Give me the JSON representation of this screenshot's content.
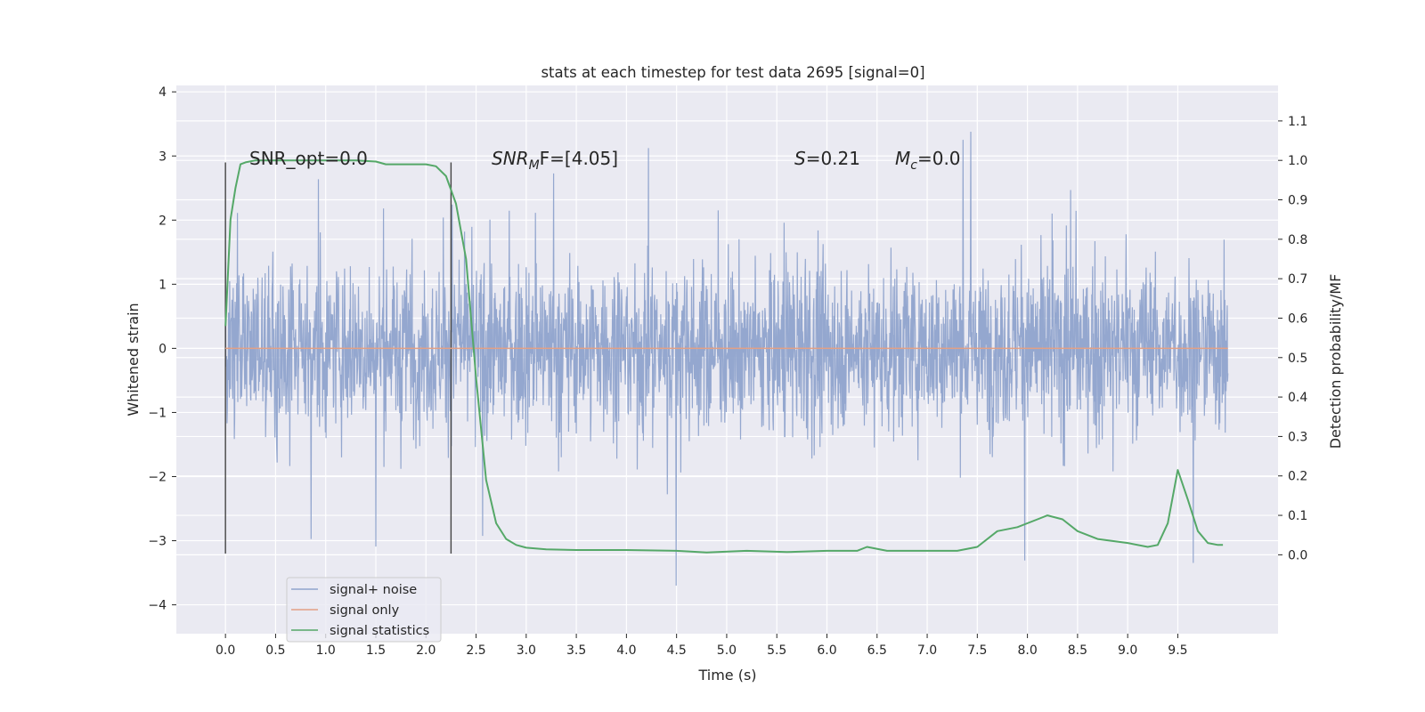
{
  "chart_data": {
    "type": "line",
    "title": "stats at each timestep for test data 2695 [signal=0]",
    "xlabel": "Time (s)",
    "ylabel_left": "Whitened strain",
    "ylabel_right": "Detection probability/MF",
    "xlim": [
      -0.49,
      10.5
    ],
    "ylim_left": [
      -4.45,
      4.1
    ],
    "ylim_right": [
      -0.2,
      1.19
    ],
    "x_ticks": [
      "0.0",
      "0.5",
      "1.0",
      "1.5",
      "2.0",
      "2.5",
      "3.0",
      "3.5",
      "4.0",
      "4.5",
      "5.0",
      "5.5",
      "6.0",
      "6.5",
      "7.0",
      "7.5",
      "8.0",
      "8.5",
      "9.0",
      "9.5"
    ],
    "y_left_ticks": [
      "4",
      "3",
      "2",
      "1",
      "0",
      "−1",
      "−2",
      "−3",
      "−4"
    ],
    "y_right_ticks": [
      "1.1",
      "1.0",
      "0.9",
      "0.8",
      "0.7",
      "0.6",
      "0.5",
      "0.4",
      "0.3",
      "0.2",
      "0.1",
      "0.0"
    ],
    "grid": true,
    "legend_position": "lower-left",
    "annotations": {
      "snr_opt": "SNR_opt=0.0",
      "snr_mf_main": "SNR",
      "snr_mf_sub": "M",
      "snr_mf_rest": "F=[4.05]",
      "s_main": "S",
      "s_rest": "=0.21",
      "mc_main": "M",
      "mc_sub": "c",
      "mc_rest": "=0.0"
    },
    "vertical_markers_x": [
      0.0,
      2.25
    ],
    "series": [
      {
        "name": "signal+ noise",
        "color": "#8fa3cc",
        "axis": "left",
        "description_values": "whitened noisy strain sampled 0–10 s, amplitude roughly within ±3.5"
      },
      {
        "name": "signal only",
        "color": "#e3a084",
        "axis": "left",
        "x": [
          0.0,
          10.0
        ],
        "y": [
          0.0,
          0.0
        ]
      },
      {
        "name": "signal statistics",
        "color": "#55a868",
        "axis": "right",
        "x": [
          0.0,
          0.05,
          0.1,
          0.15,
          0.2,
          0.3,
          0.5,
          0.8,
          1.0,
          1.3,
          1.5,
          1.6,
          1.8,
          2.0,
          2.1,
          2.2,
          2.3,
          2.4,
          2.5,
          2.6,
          2.7,
          2.8,
          2.9,
          3.0,
          3.2,
          3.5,
          4.0,
          4.5,
          4.8,
          5.2,
          5.6,
          6.0,
          6.3,
          6.4,
          6.6,
          7.0,
          7.3,
          7.5,
          7.7,
          7.9,
          8.1,
          8.2,
          8.35,
          8.5,
          8.7,
          9.0,
          9.2,
          9.3,
          9.4,
          9.5,
          9.6,
          9.7,
          9.8,
          9.9,
          9.95
        ],
        "y": [
          0.58,
          0.85,
          0.93,
          0.99,
          0.995,
          1.0,
          1.0,
          1.0,
          1.0,
          1.0,
          0.997,
          0.99,
          0.99,
          0.99,
          0.985,
          0.96,
          0.89,
          0.75,
          0.45,
          0.19,
          0.08,
          0.04,
          0.025,
          0.018,
          0.014,
          0.012,
          0.012,
          0.01,
          0.006,
          0.01,
          0.007,
          0.01,
          0.01,
          0.02,
          0.01,
          0.01,
          0.01,
          0.02,
          0.06,
          0.07,
          0.09,
          0.1,
          0.09,
          0.06,
          0.04,
          0.03,
          0.02,
          0.025,
          0.08,
          0.215,
          0.14,
          0.06,
          0.03,
          0.025,
          0.025
        ]
      }
    ]
  }
}
